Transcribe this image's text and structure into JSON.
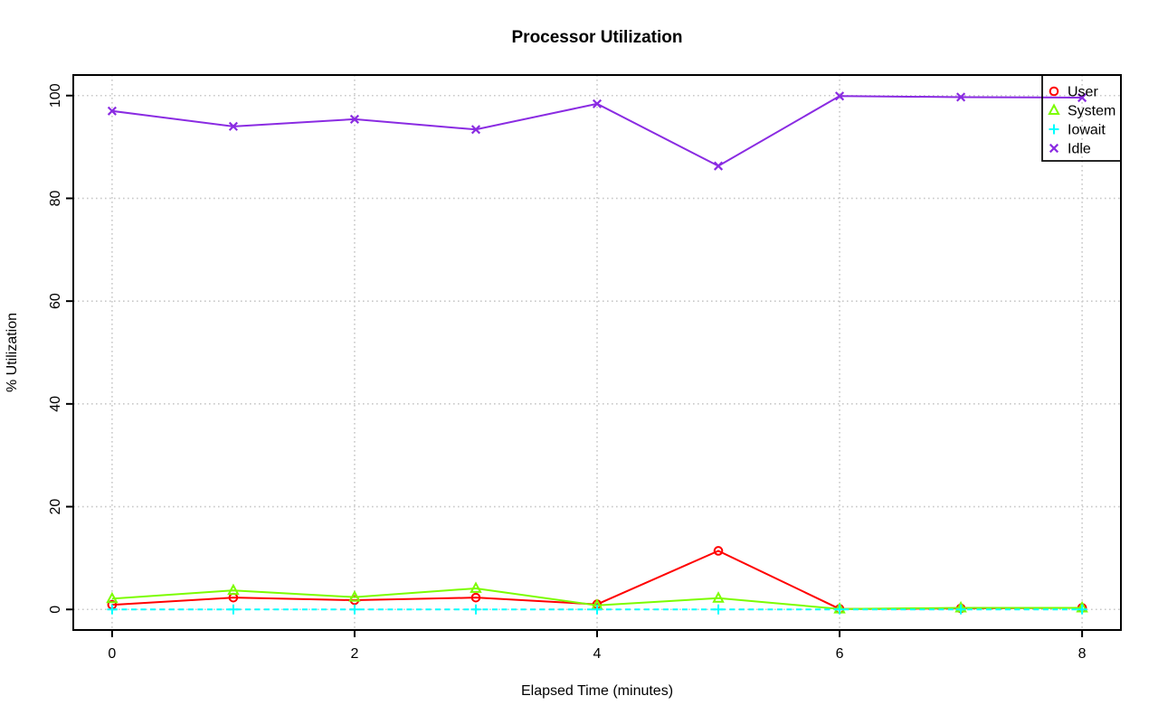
{
  "window": {
    "background_color": "#ffffff",
    "axis_color": "#000000",
    "grid_color": "#c9c9c9"
  },
  "chart_data": {
    "type": "line",
    "title": "Processor Utilization",
    "xlabel": "Elapsed Time (minutes)",
    "ylabel": "% Utilization",
    "x": [
      0,
      1,
      2,
      3,
      4,
      5,
      6,
      7,
      8
    ],
    "series": [
      {
        "name": "User",
        "color": "#ff0000",
        "marker": "circle",
        "line_style": "solid",
        "values": [
          0.9,
          2.3,
          1.8,
          2.3,
          1.0,
          11.4,
          0.1,
          0.2,
          0.3
        ]
      },
      {
        "name": "System",
        "color": "#7cfc00",
        "marker": "triangle",
        "line_style": "solid",
        "values": [
          2.1,
          3.7,
          2.4,
          4.1,
          0.8,
          2.2,
          0.1,
          0.3,
          0.3
        ]
      },
      {
        "name": "Iowait",
        "color": "#00ffff",
        "marker": "plus",
        "line_style": "dashed",
        "values": [
          0,
          0,
          0,
          0,
          0,
          0,
          0,
          0,
          0
        ]
      },
      {
        "name": "Idle",
        "color": "#8a2be2",
        "marker": "x",
        "line_style": "solid",
        "values": [
          97.0,
          94.0,
          95.4,
          93.4,
          98.4,
          86.3,
          99.9,
          99.7,
          99.6
        ]
      }
    ],
    "xticks": [
      0,
      2,
      4,
      6,
      8
    ],
    "yticks": [
      0,
      20,
      40,
      60,
      80,
      100
    ],
    "xlim": [
      -0.32,
      8.32
    ],
    "ylim": [
      -4,
      104
    ],
    "grid": true,
    "legend_position": "top-right",
    "legend_entries": [
      "User",
      "System",
      "Iowait",
      "Idle"
    ]
  }
}
